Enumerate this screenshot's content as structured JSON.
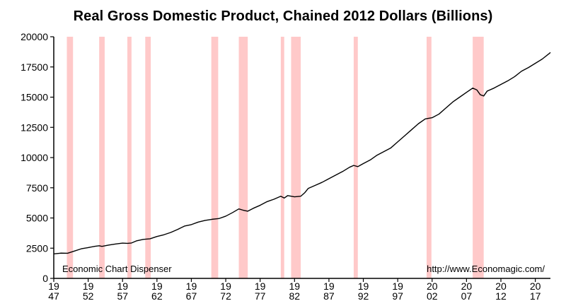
{
  "chart_data": {
    "type": "line",
    "title": "Real Gross Domestic Product, Chained 2012 Dollars (Billions)",
    "xlabel": "",
    "ylabel": "",
    "xlim": [
      1947,
      2019.2
    ],
    "ylim": [
      0,
      20000
    ],
    "y_ticks": [
      0,
      2500,
      5000,
      7500,
      10000,
      12500,
      15000,
      17500,
      20000
    ],
    "y_tick_labels": [
      "0",
      "2500",
      "5000",
      "7500",
      "10000",
      "12500",
      "15000",
      "17500",
      "20000"
    ],
    "x_ticks": [
      1947,
      1952,
      1957,
      1962,
      1967,
      1972,
      1977,
      1982,
      1987,
      1992,
      1997,
      2002,
      2007,
      2012,
      2017
    ],
    "x_tick_labels": [
      [
        "19",
        "47"
      ],
      [
        "19",
        "52"
      ],
      [
        "19",
        "57"
      ],
      [
        "19",
        "62"
      ],
      [
        "19",
        "67"
      ],
      [
        "19",
        "72"
      ],
      [
        "19",
        "77"
      ],
      [
        "19",
        "82"
      ],
      [
        "19",
        "87"
      ],
      [
        "19",
        "92"
      ],
      [
        "19",
        "97"
      ],
      [
        "20",
        "02"
      ],
      [
        "20",
        "07"
      ],
      [
        "20",
        "12"
      ],
      [
        "20",
        "17"
      ]
    ],
    "grid": false,
    "recessions": [
      [
        1948.9,
        1949.8
      ],
      [
        1953.6,
        1954.4
      ],
      [
        1957.7,
        1958.3
      ],
      [
        1960.3,
        1961.1
      ],
      [
        1969.9,
        1970.9
      ],
      [
        1973.9,
        1975.2
      ],
      [
        1980.0,
        1980.5
      ],
      [
        1981.5,
        1982.9
      ],
      [
        1990.6,
        1991.2
      ],
      [
        2001.2,
        2001.9
      ],
      [
        2007.9,
        2009.5
      ]
    ],
    "recession_color": "#ffc9c9",
    "line_color": "#000000",
    "series": [
      {
        "x": [
          1947,
          1948,
          1949,
          1950,
          1951,
          1952,
          1953,
          1953.6,
          1954,
          1955,
          1956,
          1957,
          1957.7,
          1958.3,
          1959,
          1960,
          1961,
          1962,
          1963,
          1964,
          1965,
          1966,
          1967,
          1968,
          1969,
          1970,
          1971,
          1972,
          1973,
          1973.9,
          1974.5,
          1975.2,
          1976,
          1977,
          1978,
          1979,
          1980,
          1980.5,
          1981,
          1981.5,
          1982,
          1982.9,
          1983.5,
          1984,
          1985,
          1986,
          1987,
          1988,
          1989,
          1990,
          1990.6,
          1991.2,
          1992,
          1993,
          1994,
          1995,
          1996,
          1997,
          1998,
          1999,
          2000,
          2001,
          2002,
          2003,
          2004,
          2005,
          2006,
          2007,
          2007.9,
          2008.5,
          2009,
          2009.5,
          2010,
          2011,
          2012,
          2013,
          2014,
          2015,
          2016,
          2017,
          2018,
          2019,
          2019.2
        ],
        "values": [
          2030,
          2090,
          2080,
          2260,
          2450,
          2550,
          2660,
          2700,
          2650,
          2760,
          2850,
          2920,
          2900,
          2930,
          3100,
          3230,
          3280,
          3470,
          3610,
          3800,
          4050,
          4330,
          4450,
          4660,
          4800,
          4890,
          4950,
          5150,
          5450,
          5750,
          5650,
          5560,
          5800,
          6050,
          6350,
          6550,
          6800,
          6650,
          6850,
          6800,
          6750,
          6800,
          7100,
          7450,
          7700,
          7950,
          8250,
          8550,
          8850,
          9200,
          9350,
          9250,
          9500,
          9800,
          10200,
          10500,
          10800,
          11300,
          11800,
          12300,
          12800,
          13200,
          13300,
          13600,
          14100,
          14600,
          15000,
          15400,
          15750,
          15600,
          15200,
          15100,
          15500,
          15750,
          16050,
          16350,
          16700,
          17150,
          17450,
          17800,
          18150,
          18600,
          18700
        ]
      }
    ]
  },
  "notes": {
    "left": "Economic Chart Dispenser",
    "right": "http://www.Economagic.com/"
  }
}
